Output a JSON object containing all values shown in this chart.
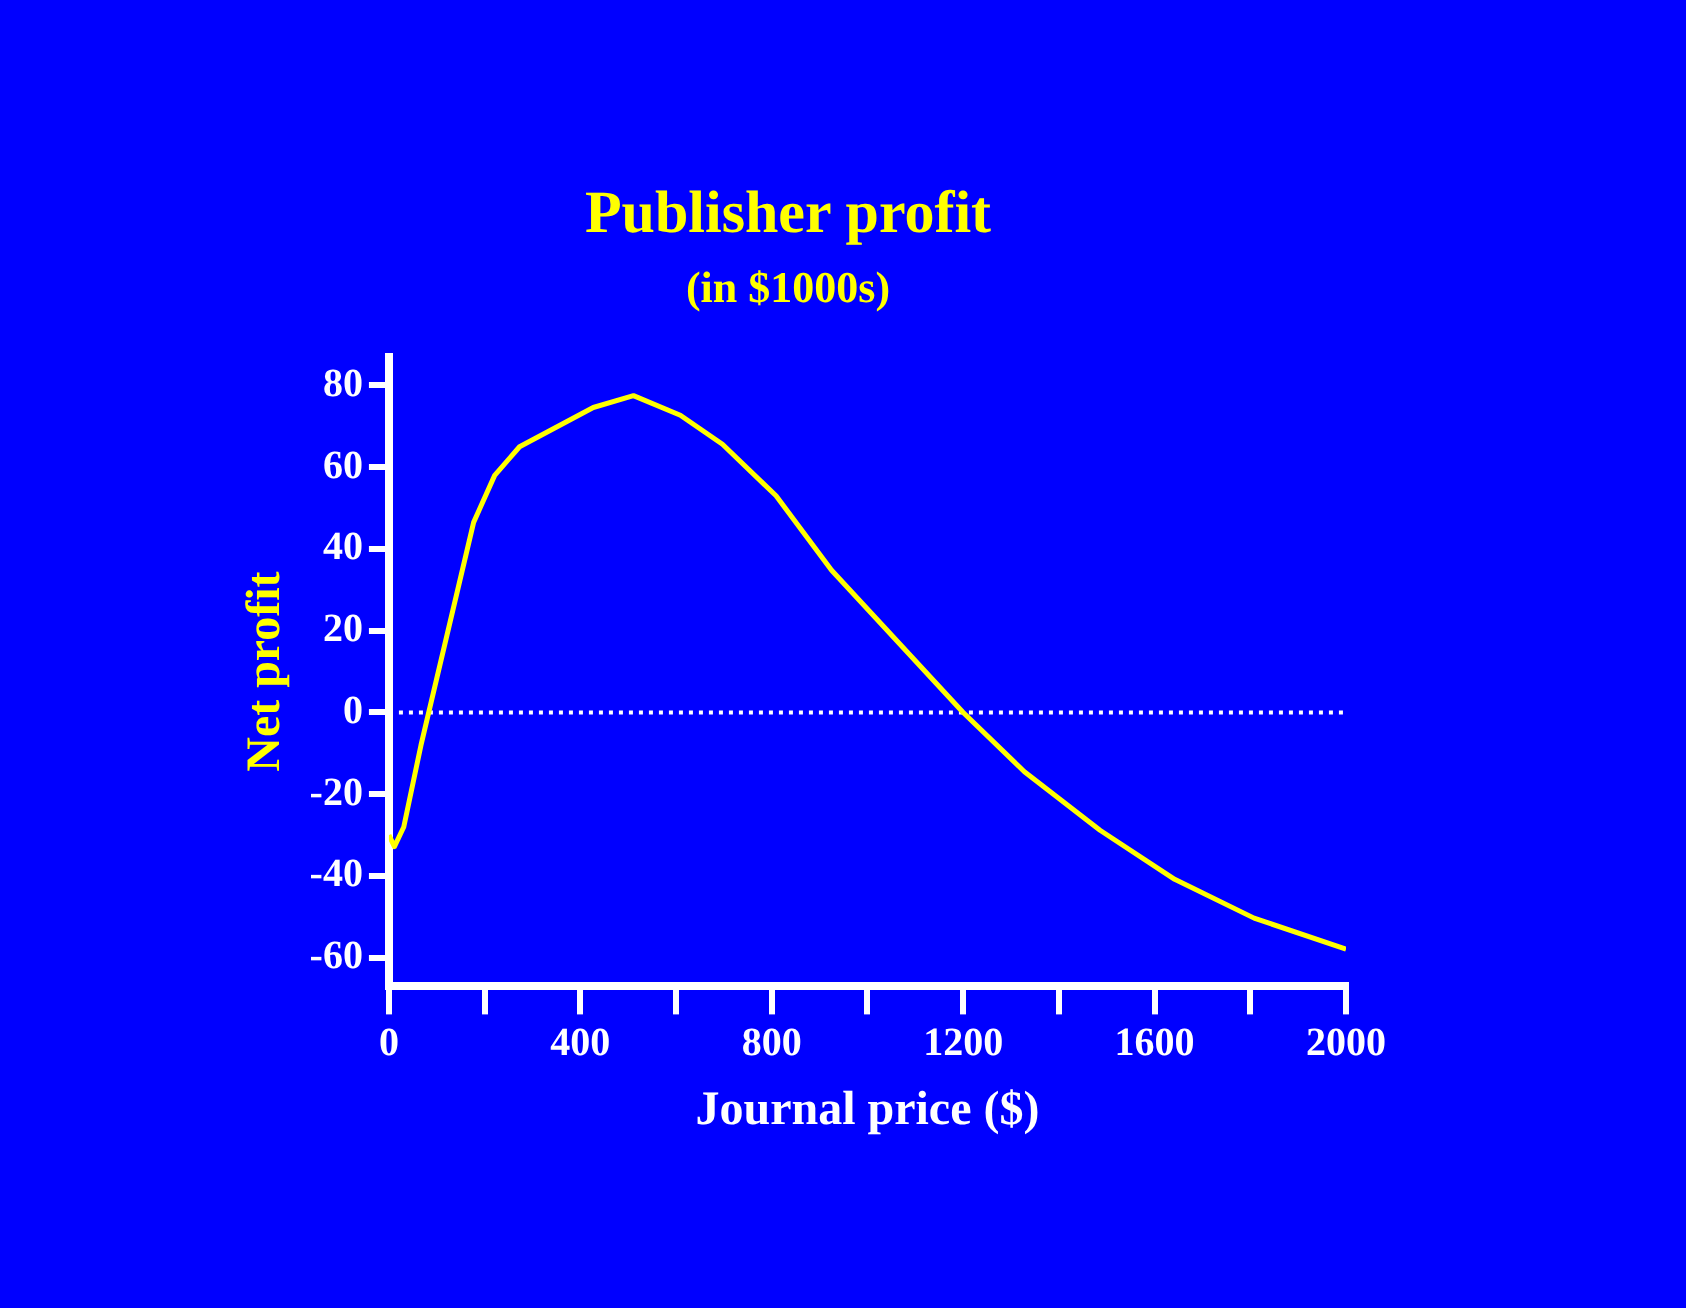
{
  "chart_data": {
    "type": "line",
    "title": "Publisher profit",
    "subtitle": "(in $1000s)",
    "xlabel": "Journal price ($)",
    "ylabel": "Net profit",
    "x": [
      0,
      11.5,
      31,
      67,
      177,
      221,
      273,
      427,
      511,
      609,
      697,
      809,
      925,
      1200,
      1328,
      1486,
      1642,
      1808,
      2000
    ],
    "series": [
      {
        "color": "#ffff00",
        "values": [
          -30,
          -32.8,
          -28,
          -8,
          46.5,
          58,
          65,
          74.6,
          77.5,
          72.7,
          65.6,
          53,
          34.8,
          0,
          -14.5,
          -28.8,
          -40.8,
          -50.3,
          -57.9
        ]
      }
    ],
    "xlim": [
      0,
      2000
    ],
    "ylim": [
      -67,
      87
    ],
    "xticks": [
      0,
      {
        "value": 200,
        "label": null
      },
      400,
      {
        "value": 600,
        "label": null
      },
      800,
      {
        "value": 1000,
        "label": null
      },
      1200,
      {
        "value": 1400,
        "label": null
      },
      1600,
      {
        "value": 1800,
        "label": null
      },
      2000
    ],
    "yticks": [
      -60,
      -40,
      -20,
      0,
      20,
      40,
      60,
      80
    ],
    "ref_lines": [
      {
        "axis": "y",
        "value": 0,
        "color": "#ffffff",
        "line_style": "dotted"
      }
    ],
    "grid": false,
    "legend": false,
    "marker": "none",
    "line_style": "solid"
  }
}
